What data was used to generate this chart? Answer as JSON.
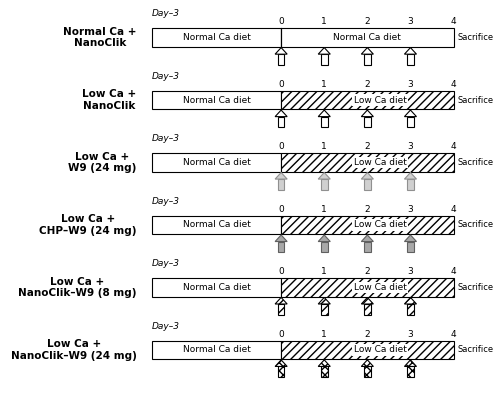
{
  "figure_width": 5.0,
  "figure_height": 4.15,
  "dpi": 100,
  "background_color": "#ffffff",
  "groups": [
    {
      "label": "Normal Ca +\nNanoClik",
      "low_ca": false,
      "arrow_style": "white"
    },
    {
      "label": "Low Ca +\nNanoClik",
      "low_ca": true,
      "arrow_style": "white"
    },
    {
      "label": "Low Ca +\nW9 (24 mg)",
      "low_ca": true,
      "arrow_style": "light_gray"
    },
    {
      "label": "Low Ca +\nCHP–W9 (24 mg)",
      "low_ca": true,
      "arrow_style": "dark_gray"
    },
    {
      "label": "Low Ca +\nNanoClik–W9 (8 mg)",
      "low_ca": true,
      "arrow_style": "hatched_light"
    },
    {
      "label": "Low Ca +\nNanoClik–W9 (24 mg)",
      "low_ca": true,
      "arrow_style": "hatched_dark"
    }
  ],
  "day_minus3_label": "Day–3",
  "sacrifice_label": "Sacrifice",
  "normal_diet_label": "Normal Ca diet",
  "low_diet_label": "Low Ca diet",
  "tick_labels": [
    "0",
    "1",
    "2",
    "3",
    "4"
  ]
}
